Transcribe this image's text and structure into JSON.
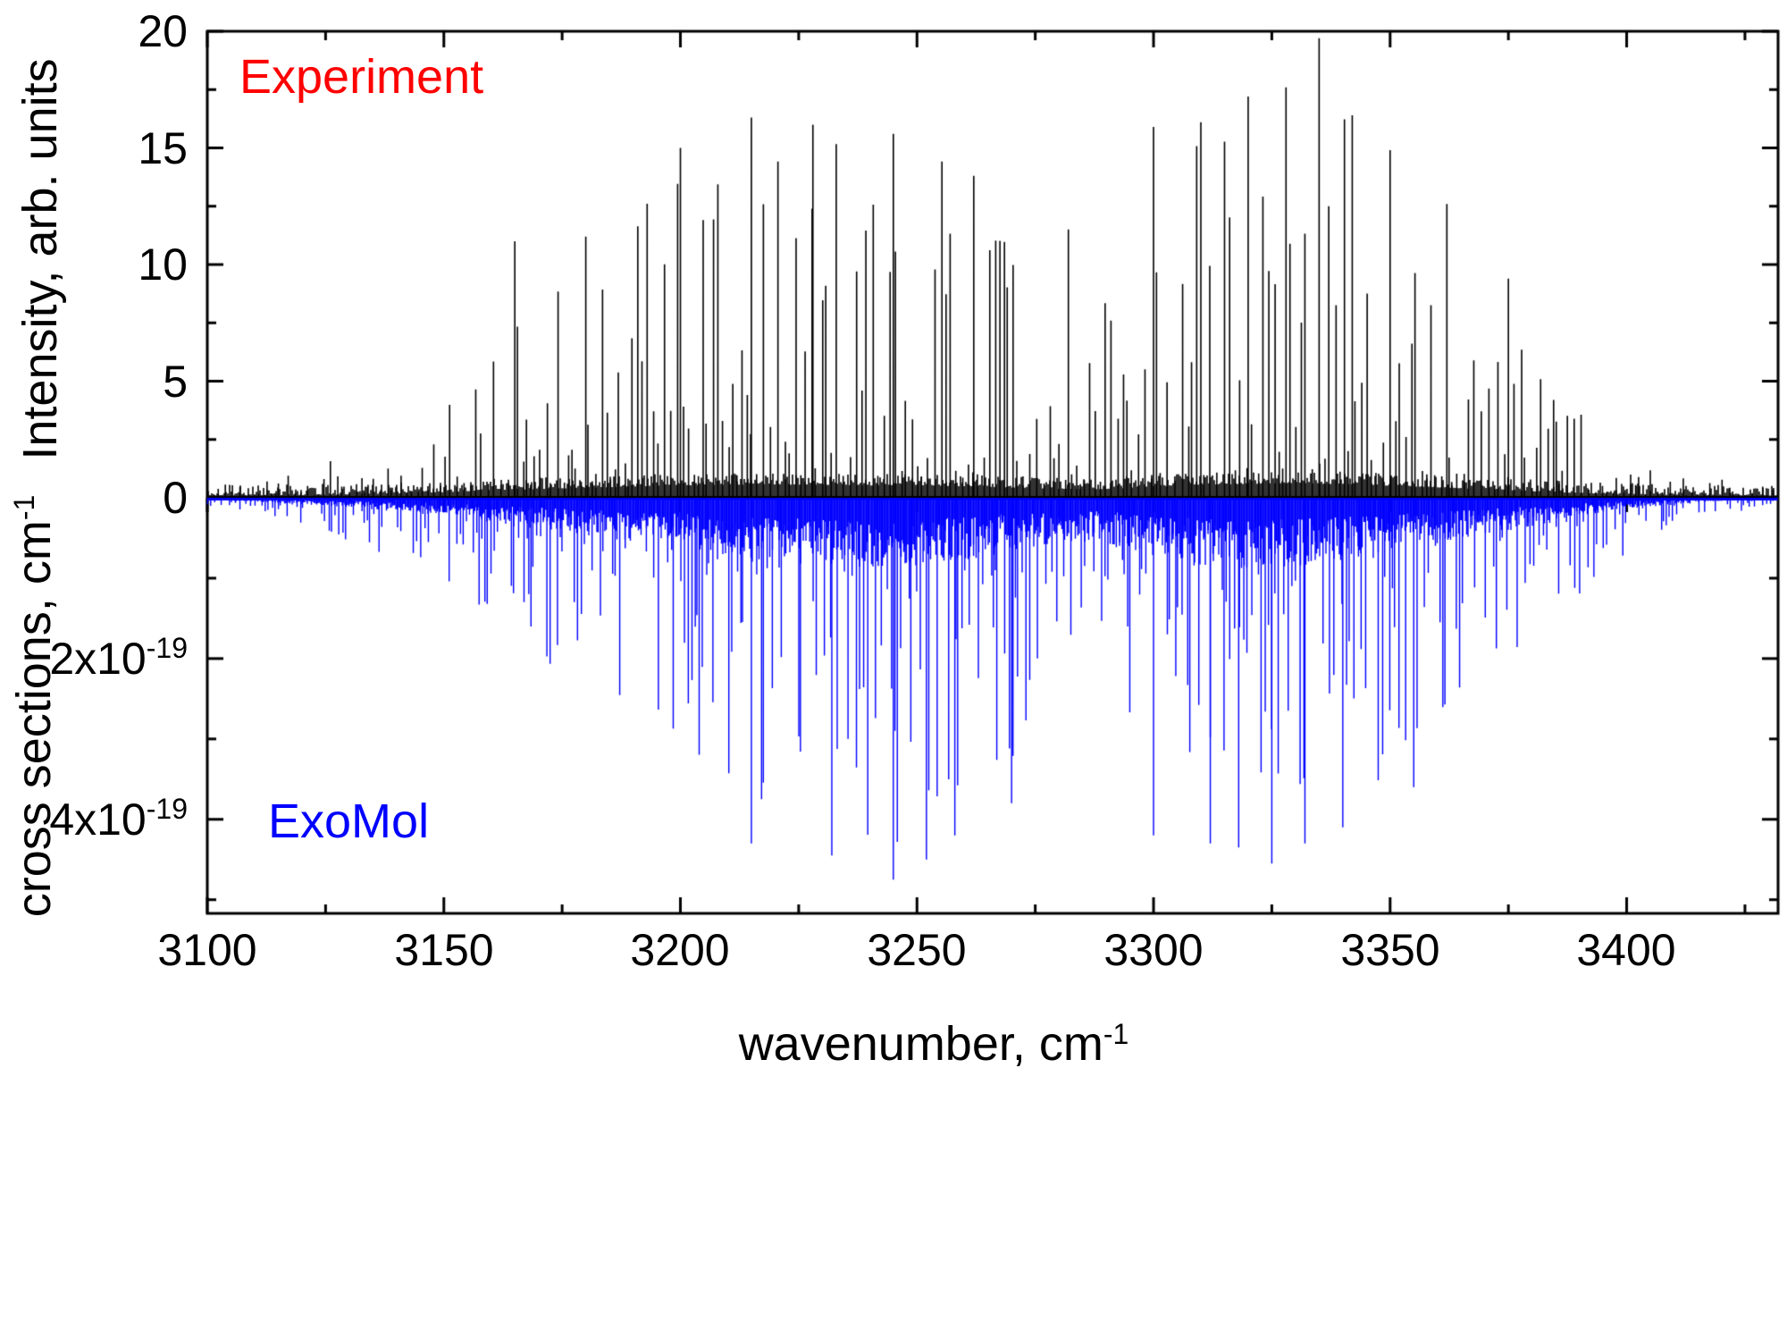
{
  "figure": {
    "background": "#ffffff",
    "frame_color": "#000000"
  },
  "annotations": {
    "experiment": {
      "text": "Experiment",
      "color": "#ff0000"
    },
    "exomol": {
      "text": "ExoMol",
      "color": "#0000ff"
    }
  },
  "chart_data": {
    "type": "line",
    "title": "",
    "description": "Mirrored spectra comparison: experimental spectrum (black, up) vs ExoMol calculated cross sections (blue, down) versus wavenumber",
    "xlabel": {
      "text": "wavenumber, cm",
      "sup": "-1"
    },
    "x_ticks": [
      "3100",
      "3150",
      "3200",
      "3250",
      "3300",
      "3350",
      "3400"
    ],
    "x_tick_values": [
      3100,
      3150,
      3200,
      3250,
      3300,
      3350,
      3400
    ],
    "x_minor_step": 25,
    "xlim": [
      3100,
      3432
    ],
    "top_panel": {
      "series_name": "Experiment",
      "color": "#000000",
      "ylabel": {
        "text": "Intensity, arb. units"
      },
      "y_ticks": [
        "0",
        "5",
        "10",
        "15",
        "20"
      ],
      "y_tick_values": [
        0,
        5,
        10,
        15,
        20
      ],
      "y_minor_step": 2.5,
      "ylim": [
        0,
        20
      ],
      "envelope_x": [
        3100,
        3110,
        3120,
        3130,
        3140,
        3150,
        3160,
        3170,
        3180,
        3190,
        3200,
        3210,
        3220,
        3230,
        3240,
        3250,
        3260,
        3270,
        3280,
        3290,
        3300,
        3310,
        3320,
        3330,
        3340,
        3350,
        3360,
        3370,
        3380,
        3390,
        3400,
        3410,
        3420,
        3432
      ],
      "envelope_y": [
        0.6,
        0.8,
        1.2,
        2.0,
        3.2,
        5.0,
        8.5,
        9.5,
        11.5,
        13.5,
        15.2,
        15.8,
        16.2,
        16.0,
        14.8,
        15.5,
        13.8,
        12.0,
        9.5,
        9.8,
        13.5,
        16.0,
        17.0,
        18.5,
        16.5,
        14.8,
        12.2,
        9.2,
        6.8,
        4.2,
        2.6,
        1.3,
        0.8,
        0.5
      ],
      "peak_lines": [
        [
          3165,
          11.0
        ],
        [
          3180,
          11.2
        ],
        [
          3200,
          15.0
        ],
        [
          3215,
          16.3
        ],
        [
          3228,
          16.0
        ],
        [
          3245,
          15.6
        ],
        [
          3262,
          13.8
        ],
        [
          3282,
          11.5
        ],
        [
          3300,
          15.9
        ],
        [
          3310,
          16.1
        ],
        [
          3320,
          17.2
        ],
        [
          3328,
          17.6
        ],
        [
          3335,
          19.7
        ],
        [
          3342,
          16.4
        ],
        [
          3350,
          14.9
        ],
        [
          3362,
          12.6
        ],
        [
          3375,
          9.4
        ]
      ]
    },
    "bottom_panel": {
      "series_name": "ExoMol",
      "color": "#0000ff",
      "ylabel": {
        "text": "cross sections, cm",
        "sup": "-1"
      },
      "y_ticks": [
        {
          "text": "2x10",
          "sup": "-19"
        },
        {
          "text": "4x10",
          "sup": "-19"
        }
      ],
      "y_tick_values": [
        2,
        4
      ],
      "y_minor_step": 1,
      "y_unit_scale": "1e-19",
      "ylim": [
        0,
        5.17
      ],
      "envelope_x": [
        3100,
        3110,
        3120,
        3130,
        3140,
        3150,
        3160,
        3170,
        3180,
        3190,
        3200,
        3210,
        3220,
        3230,
        3240,
        3250,
        3260,
        3270,
        3280,
        3290,
        3300,
        3310,
        3320,
        3330,
        3340,
        3350,
        3360,
        3370,
        3380,
        3390,
        3400,
        3410,
        3420,
        3432
      ],
      "envelope_y": [
        0.15,
        0.25,
        0.4,
        0.6,
        0.85,
        1.1,
        1.6,
        2.0,
        2.4,
        2.75,
        3.1,
        3.6,
        4.0,
        4.3,
        4.55,
        4.4,
        3.9,
        3.3,
        2.75,
        2.85,
        3.6,
        4.2,
        4.5,
        4.3,
        3.9,
        3.4,
        2.9,
        2.3,
        1.8,
        1.2,
        0.7,
        0.4,
        0.2,
        0.1
      ],
      "peak_lines": [
        [
          3215,
          4.3
        ],
        [
          3232,
          4.45
        ],
        [
          3245,
          4.75
        ],
        [
          3252,
          4.5
        ],
        [
          3258,
          4.2
        ],
        [
          3270,
          3.8
        ],
        [
          3300,
          4.2
        ],
        [
          3312,
          4.3
        ],
        [
          3318,
          4.35
        ],
        [
          3325,
          4.55
        ],
        [
          3332,
          4.3
        ],
        [
          3340,
          4.1
        ],
        [
          3355,
          3.6
        ]
      ]
    }
  }
}
